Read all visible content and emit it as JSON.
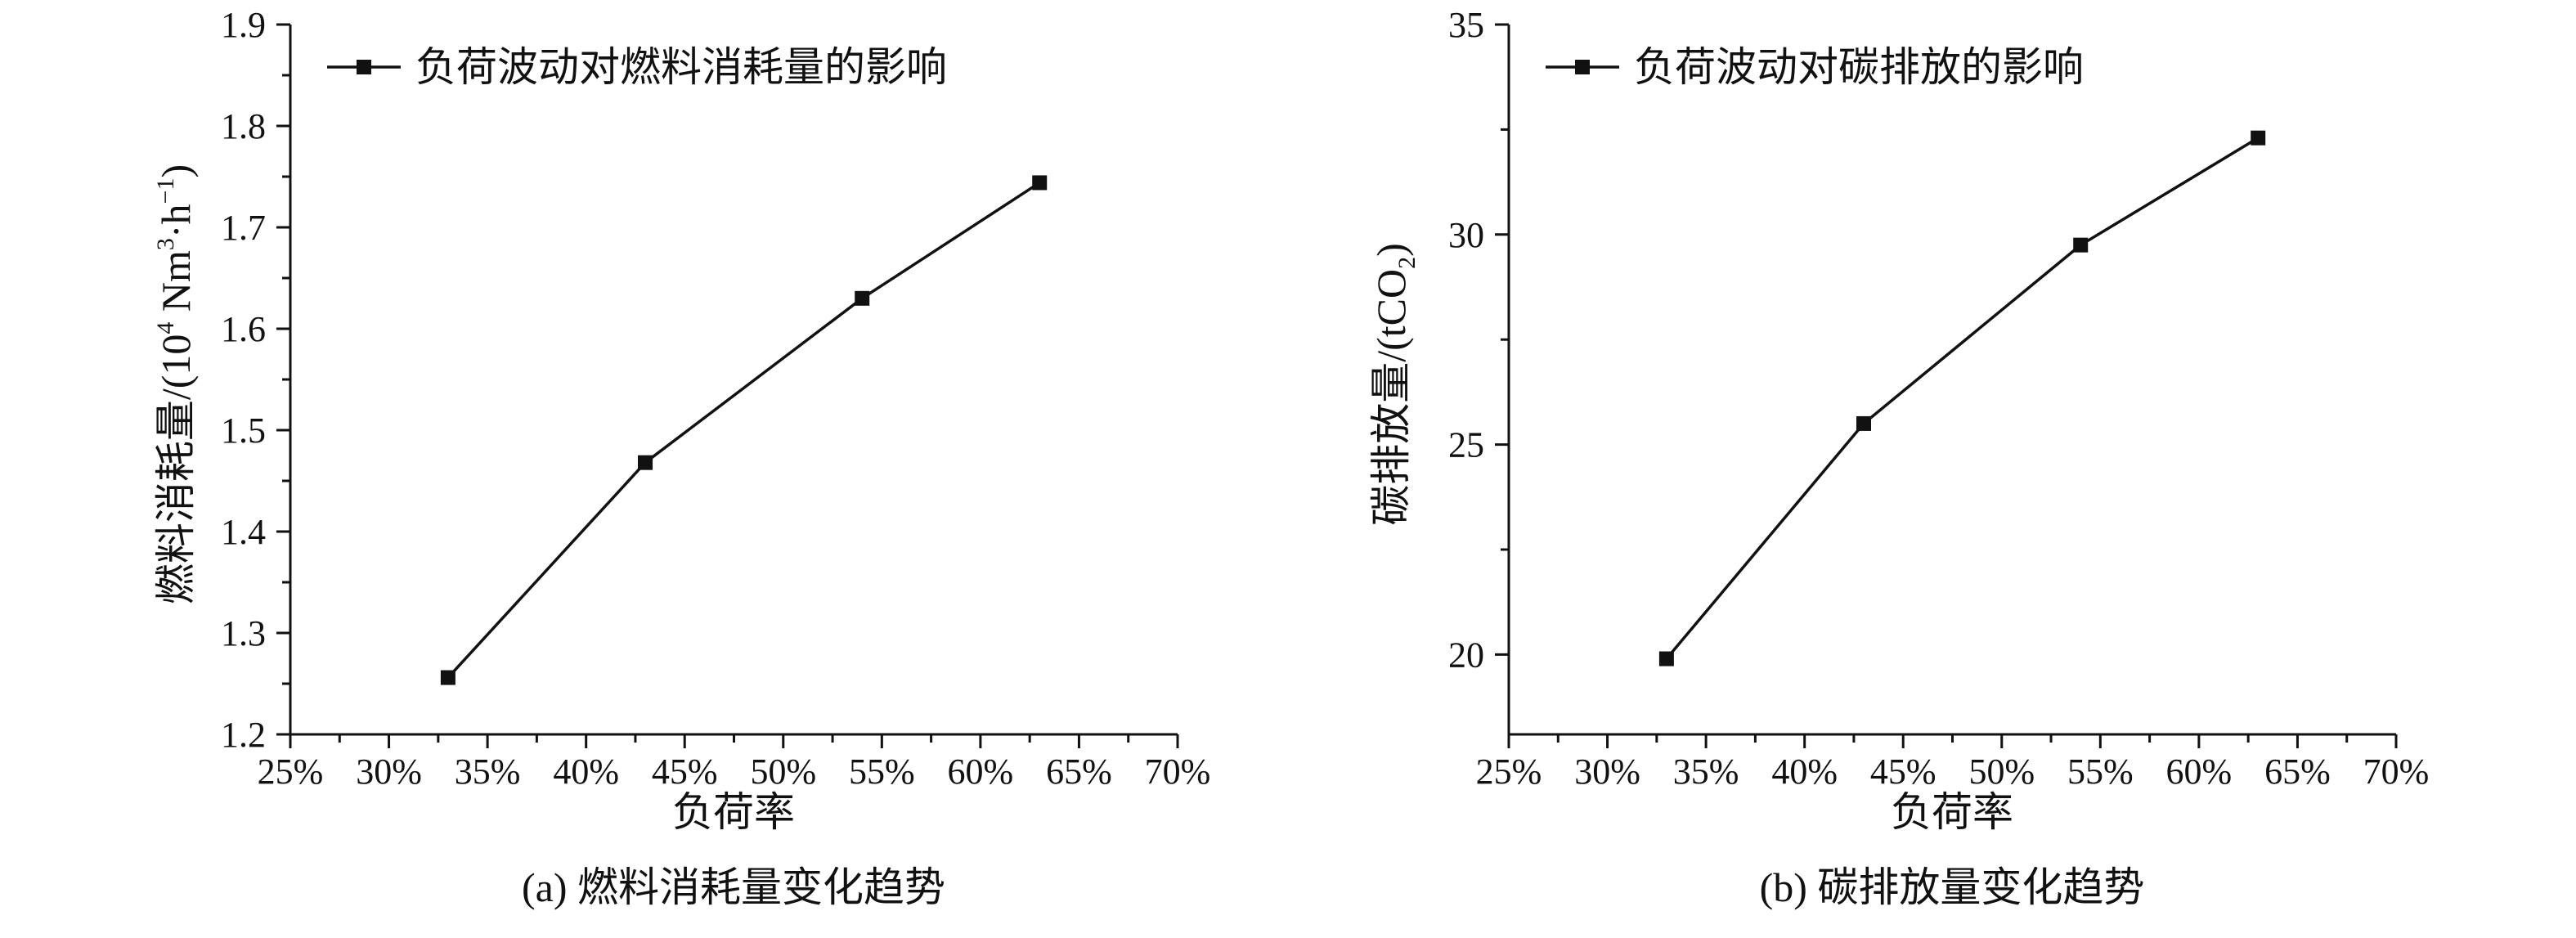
{
  "chart_data": [
    {
      "type": "line",
      "caption": "(a) 燃料消耗量变化趋势",
      "xlabel": "负荷率",
      "ylabel_parts": {
        "main": "燃料消耗量/(10",
        "sup1": "4",
        "mid": " Nm",
        "sup2": "3",
        "tail": "·h",
        "sup3": "−1",
        "end": ")"
      },
      "x_ticks": [
        "25%",
        "30%",
        "35%",
        "40%",
        "45%",
        "50%",
        "55%",
        "60%",
        "65%",
        "70%"
      ],
      "y_ticks": [
        "1.2",
        "1.3",
        "1.4",
        "1.5",
        "1.6",
        "1.7",
        "1.8",
        "1.9"
      ],
      "xlim": [
        25,
        70
      ],
      "ylim": [
        1.2,
        1.9
      ],
      "legend_position": "top-left",
      "series": [
        {
          "name": "负荷波动对燃料消耗量的影响",
          "x": [
            33,
            43,
            54,
            63
          ],
          "values": [
            1.256,
            1.468,
            1.63,
            1.744
          ]
        }
      ]
    },
    {
      "type": "line",
      "caption": "(b) 碳排放量变化趋势",
      "xlabel": "负荷率",
      "ylabel_parts": {
        "main": "碳排放量/(tCO",
        "sub": "2",
        "end": ")"
      },
      "x_ticks": [
        "25%",
        "30%",
        "35%",
        "40%",
        "45%",
        "50%",
        "55%",
        "60%",
        "65%",
        "70%"
      ],
      "y_ticks": [
        "20",
        "25",
        "30",
        "35"
      ],
      "xlim": [
        25,
        70
      ],
      "ylim": [
        18.1,
        35
      ],
      "legend_position": "top-left",
      "series": [
        {
          "name": "负荷波动对碳排放的影响",
          "x": [
            33,
            43,
            54,
            63
          ],
          "values": [
            19.9,
            25.5,
            29.75,
            32.3
          ]
        }
      ]
    }
  ]
}
